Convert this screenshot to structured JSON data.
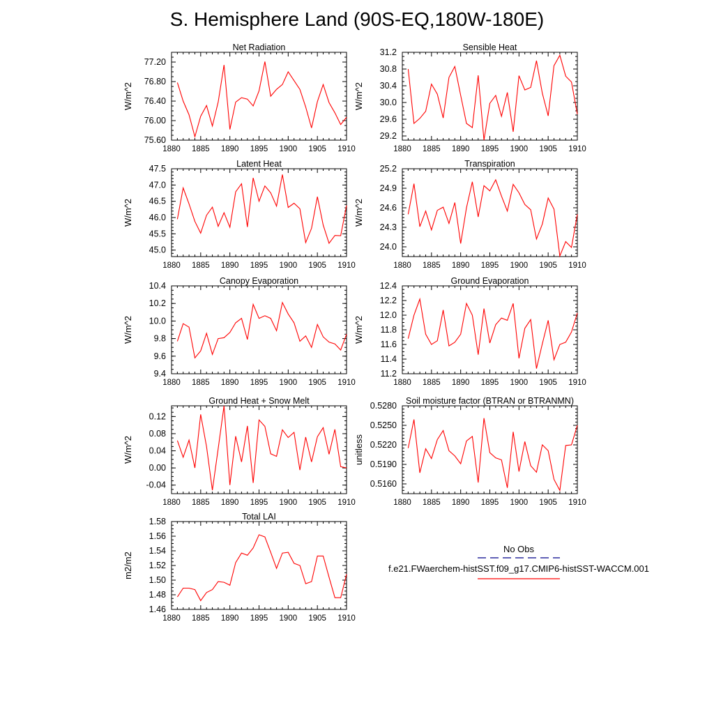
{
  "page": {
    "title": "S. Hemisphere Land (90S-EQ,180W-180E)"
  },
  "legend": {
    "entries": [
      {
        "label": "No Obs",
        "color": "#00008b",
        "style": "dashed"
      },
      {
        "label": "f.e21.FWaerchem-histSST.f09_g17.CMIP6-histSST-WACCM.001",
        "color": "#ff0000",
        "style": "solid"
      }
    ]
  },
  "chart_data": [
    {
      "type": "line",
      "title": "Net Radiation",
      "xlabel": "",
      "ylabel": "W/m^2",
      "xlim": [
        1880,
        1910
      ],
      "ylim": [
        75.6,
        77.4
      ],
      "xticks": [
        1880,
        1885,
        1890,
        1895,
        1900,
        1905,
        1910
      ],
      "yticks": [
        75.6,
        76.0,
        76.4,
        76.8,
        77.2
      ],
      "yticks_label": [
        "75.60",
        "76.00",
        "76.40",
        "76.80",
        "77.20"
      ],
      "ymin_step": 0.1,
      "color": "#ff0000",
      "x": [
        1881,
        1882,
        1883,
        1884,
        1885,
        1886,
        1887,
        1888,
        1889,
        1890,
        1891,
        1892,
        1893,
        1894,
        1895,
        1896,
        1897,
        1898,
        1899,
        1900,
        1901,
        1902,
        1903,
        1904,
        1905,
        1906,
        1907,
        1908,
        1909,
        1910
      ],
      "values": [
        76.78,
        76.4,
        76.12,
        75.67,
        76.09,
        76.31,
        75.89,
        76.38,
        77.14,
        75.82,
        76.38,
        76.47,
        76.44,
        76.3,
        76.61,
        77.21,
        76.5,
        76.64,
        76.74,
        77.0,
        76.82,
        76.64,
        76.28,
        75.85,
        76.39,
        76.74,
        76.37,
        76.16,
        75.92,
        76.07
      ]
    },
    {
      "type": "line",
      "title": "Sensible Heat",
      "xlabel": "",
      "ylabel": "W/m^2",
      "xlim": [
        1880,
        1910
      ],
      "ylim": [
        29.1,
        31.2
      ],
      "xticks": [
        1880,
        1885,
        1890,
        1895,
        1900,
        1905,
        1910
      ],
      "yticks": [
        29.2,
        29.6,
        30.0,
        30.4,
        30.8,
        31.2
      ],
      "yticks_label": [
        "29.2",
        "29.6",
        "30.0",
        "30.4",
        "30.8",
        "31.2"
      ],
      "ymin_step": 0.1,
      "color": "#ff0000",
      "x": [
        1881,
        1882,
        1883,
        1884,
        1885,
        1886,
        1887,
        1888,
        1889,
        1890,
        1891,
        1892,
        1893,
        1894,
        1895,
        1896,
        1897,
        1898,
        1899,
        1900,
        1901,
        1902,
        1903,
        1904,
        1905,
        1906,
        1907,
        1908,
        1909,
        1910
      ],
      "values": [
        30.8,
        29.5,
        29.62,
        29.79,
        30.44,
        30.2,
        29.63,
        30.6,
        30.86,
        30.17,
        29.5,
        29.4,
        30.65,
        29.1,
        29.98,
        30.17,
        29.67,
        30.24,
        29.3,
        30.64,
        30.3,
        30.36,
        31.0,
        30.22,
        29.68,
        30.88,
        31.13,
        30.63,
        30.49,
        29.72
      ]
    },
    {
      "type": "line",
      "title": "Latent Heat",
      "xlabel": "",
      "ylabel": "W/m^2",
      "xlim": [
        1880,
        1910
      ],
      "ylim": [
        44.8,
        47.5
      ],
      "xticks": [
        1880,
        1885,
        1890,
        1895,
        1900,
        1905,
        1910
      ],
      "yticks": [
        45.0,
        45.5,
        46.0,
        46.5,
        47.0,
        47.5
      ],
      "yticks_label": [
        "45.0",
        "45.5",
        "46.0",
        "46.5",
        "47.0",
        "47.5"
      ],
      "ymin_step": 0.1,
      "color": "#ff0000",
      "x": [
        1881,
        1882,
        1883,
        1884,
        1885,
        1886,
        1887,
        1888,
        1889,
        1890,
        1891,
        1892,
        1893,
        1894,
        1895,
        1896,
        1897,
        1898,
        1899,
        1900,
        1901,
        1902,
        1903,
        1904,
        1905,
        1906,
        1907,
        1908,
        1909,
        1910
      ],
      "values": [
        45.95,
        46.91,
        46.42,
        45.88,
        45.52,
        46.07,
        46.32,
        45.73,
        46.15,
        45.7,
        46.79,
        47.04,
        45.71,
        47.22,
        46.5,
        46.97,
        46.76,
        46.35,
        47.32,
        46.31,
        46.44,
        46.27,
        45.23,
        45.67,
        46.64,
        45.77,
        45.21,
        45.45,
        45.44,
        46.37
      ]
    },
    {
      "type": "line",
      "title": "Transpiration",
      "xlabel": "",
      "ylabel": "W/m^2",
      "xlim": [
        1880,
        1910
      ],
      "ylim": [
        23.85,
        25.2
      ],
      "xticks": [
        1880,
        1885,
        1890,
        1895,
        1900,
        1905,
        1910
      ],
      "yticks": [
        24.0,
        24.3,
        24.6,
        24.9,
        25.2
      ],
      "yticks_label": [
        "24.0",
        "24.3",
        "24.6",
        "24.9",
        "25.2"
      ],
      "ymin_step": 0.05,
      "color": "#ff0000",
      "x": [
        1881,
        1882,
        1883,
        1884,
        1885,
        1886,
        1887,
        1888,
        1889,
        1890,
        1891,
        1892,
        1893,
        1894,
        1895,
        1896,
        1897,
        1898,
        1899,
        1900,
        1901,
        1902,
        1903,
        1904,
        1905,
        1906,
        1907,
        1908,
        1909,
        1910
      ],
      "values": [
        24.5,
        24.97,
        24.31,
        24.55,
        24.26,
        24.56,
        24.61,
        24.36,
        24.68,
        24.05,
        24.6,
        25.0,
        24.46,
        24.94,
        24.86,
        25.03,
        24.78,
        24.55,
        24.96,
        24.83,
        24.65,
        24.57,
        24.12,
        24.35,
        24.75,
        24.58,
        23.86,
        24.08,
        23.99,
        24.5
      ]
    },
    {
      "type": "line",
      "title": "Canopy Evaporation",
      "xlabel": "",
      "ylabel": "W/m^2",
      "xlim": [
        1880,
        1910
      ],
      "ylim": [
        9.4,
        10.4
      ],
      "xticks": [
        1880,
        1885,
        1890,
        1895,
        1900,
        1905,
        1910
      ],
      "yticks": [
        9.4,
        9.6,
        9.8,
        10.0,
        10.2,
        10.4
      ],
      "yticks_label": [
        "9.4",
        "9.6",
        "9.8",
        "10.0",
        "10.2",
        "10.4"
      ],
      "ymin_step": 0.05,
      "color": "#ff0000",
      "x": [
        1881,
        1882,
        1883,
        1884,
        1885,
        1886,
        1887,
        1888,
        1889,
        1890,
        1891,
        1892,
        1893,
        1894,
        1895,
        1896,
        1897,
        1898,
        1899,
        1900,
        1901,
        1902,
        1903,
        1904,
        1905,
        1906,
        1907,
        1908,
        1909,
        1910
      ],
      "values": [
        9.77,
        9.97,
        9.93,
        9.58,
        9.66,
        9.86,
        9.62,
        9.8,
        9.81,
        9.87,
        9.98,
        10.03,
        9.79,
        10.19,
        10.03,
        10.06,
        10.03,
        9.89,
        10.21,
        10.08,
        9.98,
        9.77,
        9.83,
        9.7,
        9.96,
        9.82,
        9.76,
        9.74,
        9.67,
        9.85
      ]
    },
    {
      "type": "line",
      "title": "Ground Evaporation",
      "xlabel": "",
      "ylabel": "W/m^2",
      "xlim": [
        1880,
        1910
      ],
      "ylim": [
        11.2,
        12.4
      ],
      "xticks": [
        1880,
        1885,
        1890,
        1895,
        1900,
        1905,
        1910
      ],
      "yticks": [
        11.2,
        11.4,
        11.6,
        11.8,
        12.0,
        12.2,
        12.4
      ],
      "yticks_label": [
        "11.2",
        "11.4",
        "11.6",
        "11.8",
        "12.0",
        "12.2",
        "12.4"
      ],
      "ymin_step": 0.05,
      "color": "#ff0000",
      "x": [
        1881,
        1882,
        1883,
        1884,
        1885,
        1886,
        1887,
        1888,
        1889,
        1890,
        1891,
        1892,
        1893,
        1894,
        1895,
        1896,
        1897,
        1898,
        1899,
        1900,
        1901,
        1902,
        1903,
        1904,
        1905,
        1906,
        1907,
        1908,
        1909,
        1910
      ],
      "values": [
        11.68,
        12.0,
        12.22,
        11.74,
        11.6,
        11.65,
        12.07,
        11.58,
        11.63,
        11.74,
        12.16,
        12.0,
        11.46,
        12.09,
        11.62,
        11.87,
        11.96,
        11.93,
        12.16,
        11.41,
        11.82,
        11.94,
        11.27,
        11.61,
        11.93,
        11.39,
        11.6,
        11.63,
        11.77,
        12.03
      ]
    },
    {
      "type": "line",
      "title": "Ground Heat + Snow Melt",
      "xlabel": "",
      "ylabel": "W/m^2",
      "xlim": [
        1880,
        1910
      ],
      "ylim": [
        -0.06,
        0.145
      ],
      "xticks": [
        1880,
        1885,
        1890,
        1895,
        1900,
        1905,
        1910
      ],
      "yticks": [
        -0.04,
        0.0,
        0.04,
        0.08,
        0.12
      ],
      "yticks_label": [
        "-0.04",
        "0.00",
        "0.04",
        "0.08",
        "0.12"
      ],
      "ymin_step": 0.01,
      "color": "#ff0000",
      "x": [
        1881,
        1882,
        1883,
        1884,
        1885,
        1886,
        1887,
        1888,
        1889,
        1890,
        1891,
        1892,
        1893,
        1894,
        1895,
        1896,
        1897,
        1898,
        1899,
        1900,
        1901,
        1902,
        1903,
        1904,
        1905,
        1906,
        1907,
        1908,
        1909,
        1910
      ],
      "values": [
        0.064,
        0.025,
        0.065,
        0.0,
        0.125,
        0.05,
        -0.052,
        0.045,
        0.145,
        -0.04,
        0.074,
        0.014,
        0.098,
        -0.035,
        0.112,
        0.097,
        0.033,
        0.027,
        0.089,
        0.071,
        0.083,
        -0.005,
        0.072,
        0.014,
        0.073,
        0.094,
        0.032,
        0.09,
        0.003,
        0.0
      ]
    },
    {
      "type": "line",
      "title": "Soil moisture factor (BTRAN or BTRANMN)",
      "xlabel": "",
      "ylabel": "unitless",
      "xlim": [
        1880,
        1910
      ],
      "ylim": [
        0.5145,
        0.528
      ],
      "xticks": [
        1880,
        1885,
        1890,
        1895,
        1900,
        1905,
        1910
      ],
      "yticks": [
        0.516,
        0.519,
        0.522,
        0.525,
        0.528
      ],
      "yticks_label": [
        "0.5160",
        "0.5190",
        "0.5220",
        "0.5250",
        "0.5280"
      ],
      "ymin_step": 0.0005,
      "color": "#ff0000",
      "x": [
        1881,
        1882,
        1883,
        1884,
        1885,
        1886,
        1887,
        1888,
        1889,
        1890,
        1891,
        1892,
        1893,
        1894,
        1895,
        1896,
        1897,
        1898,
        1899,
        1900,
        1901,
        1902,
        1903,
        1904,
        1905,
        1906,
        1907,
        1908,
        1909,
        1910
      ],
      "values": [
        0.5215,
        0.5259,
        0.5177,
        0.5214,
        0.5199,
        0.5228,
        0.5242,
        0.5211,
        0.5203,
        0.5191,
        0.5226,
        0.5233,
        0.5162,
        0.5261,
        0.5208,
        0.52,
        0.5197,
        0.5154,
        0.524,
        0.5179,
        0.5225,
        0.5188,
        0.5178,
        0.522,
        0.5211,
        0.5167,
        0.515,
        0.5219,
        0.522,
        0.525
      ]
    },
    {
      "type": "line",
      "title": "Total LAI",
      "xlabel": "",
      "ylabel": "m2/m2",
      "xlim": [
        1880,
        1910
      ],
      "ylim": [
        1.46,
        1.58
      ],
      "xticks": [
        1880,
        1885,
        1890,
        1895,
        1900,
        1905,
        1910
      ],
      "yticks": [
        1.46,
        1.48,
        1.5,
        1.52,
        1.54,
        1.56,
        1.58
      ],
      "yticks_label": [
        "1.46",
        "1.48",
        "1.50",
        "1.52",
        "1.54",
        "1.56",
        "1.58"
      ],
      "ymin_step": 0.005,
      "color": "#ff0000",
      "x": [
        1881,
        1882,
        1883,
        1884,
        1885,
        1886,
        1887,
        1888,
        1889,
        1890,
        1891,
        1892,
        1893,
        1894,
        1895,
        1896,
        1897,
        1898,
        1899,
        1900,
        1901,
        1902,
        1903,
        1904,
        1905,
        1906,
        1907,
        1908,
        1909,
        1910
      ],
      "values": [
        1.477,
        1.489,
        1.489,
        1.487,
        1.472,
        1.483,
        1.487,
        1.498,
        1.497,
        1.493,
        1.524,
        1.537,
        1.534,
        1.544,
        1.562,
        1.559,
        1.538,
        1.516,
        1.537,
        1.538,
        1.523,
        1.52,
        1.495,
        1.498,
        1.533,
        1.533,
        1.504,
        1.476,
        1.476,
        1.508
      ]
    }
  ]
}
